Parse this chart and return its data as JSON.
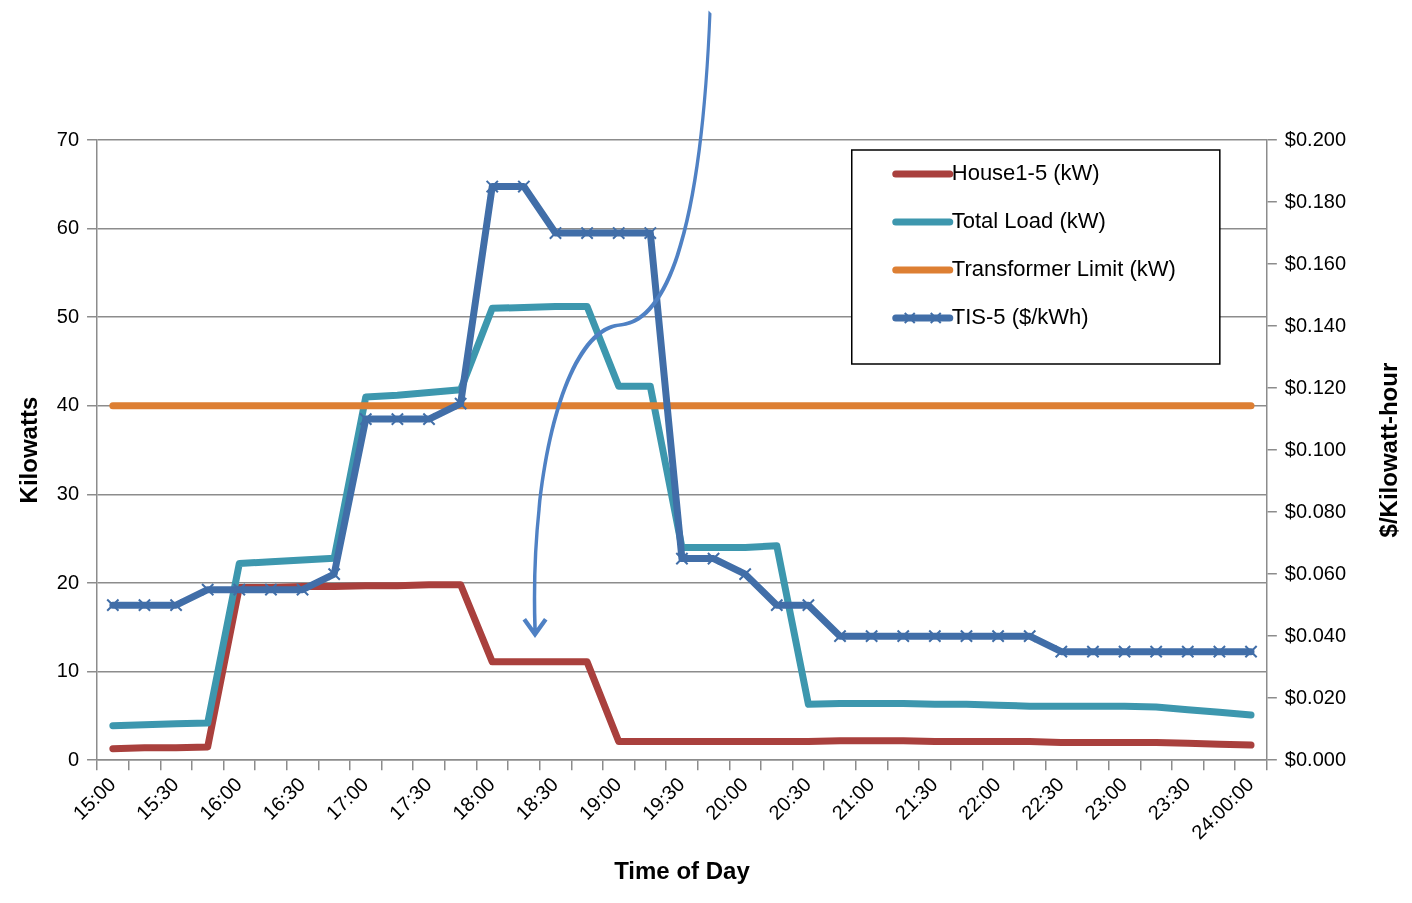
{
  "chart_data": {
    "type": "line",
    "xlabel": "Time of Day",
    "ylabel": "Kilowatts",
    "y2label": "$/Kilowatt-hour",
    "categories": [
      "15:00",
      null,
      "15:30",
      null,
      "16:00",
      null,
      "16:30",
      null,
      "17:00",
      null,
      "17:30",
      null,
      "18:00",
      null,
      "18:30",
      null,
      "19:00",
      null,
      "19:30",
      null,
      "20:00",
      null,
      "20:30",
      null,
      "21:00",
      null,
      "21:30",
      null,
      "22:00",
      null,
      "22:30",
      null,
      "23:00",
      null,
      "23:30",
      null,
      "24:00:00"
    ],
    "series": [
      {
        "name": "House1-5 (kW)",
        "color": "#a9403d",
        "values": [
          1.3,
          1.4,
          1.4,
          1.5,
          19.5,
          19.5,
          19.6,
          19.6,
          19.7,
          19.7,
          19.8,
          19.8,
          11.1,
          11.1,
          11.1,
          11.1,
          2.1,
          2.1,
          2.1,
          2.1,
          2.1,
          2.1,
          2.1,
          2.2,
          2.2,
          2.2,
          2.1,
          2.1,
          2.1,
          2.1,
          2.0,
          2.0,
          2.0,
          2.0,
          1.9,
          1.8,
          1.7
        ]
      },
      {
        "name": "Total Load (kW)",
        "color": "#3d97ae",
        "values": [
          3.9,
          4.0,
          4.1,
          4.2,
          22.2,
          22.4,
          22.6,
          22.8,
          41.0,
          41.2,
          41.5,
          41.8,
          51.0,
          51.1,
          51.2,
          51.2,
          42.2,
          42.2,
          24.0,
          24.0,
          24.0,
          24.2,
          6.3,
          6.4,
          6.4,
          6.4,
          6.3,
          6.3,
          6.2,
          6.1,
          6.1,
          6.1,
          6.1,
          6.0,
          5.7,
          5.4,
          5.1
        ]
      },
      {
        "name": "Transformer Limit (kW)",
        "color": "#dd7f33",
        "values": [
          40,
          40,
          40,
          40,
          40,
          40,
          40,
          40,
          40,
          40,
          40,
          40,
          40,
          40,
          40,
          40,
          40,
          40,
          40,
          40,
          40,
          40,
          40,
          40,
          40,
          40,
          40,
          40,
          40,
          40,
          40,
          40,
          40,
          40,
          40,
          40,
          40
        ]
      },
      {
        "name": "TIS-5 ($/kWh)",
        "color": "#416ea8",
        "axis": "y2",
        "marker": "cross",
        "values": [
          0.05,
          0.05,
          0.05,
          0.055,
          0.055,
          0.055,
          0.055,
          0.06,
          0.11,
          0.11,
          0.11,
          0.115,
          0.185,
          0.185,
          0.17,
          0.17,
          0.17,
          0.17,
          0.065,
          0.065,
          0.06,
          0.05,
          0.05,
          0.04,
          0.04,
          0.04,
          0.04,
          0.04,
          0.04,
          0.04,
          0.035,
          0.035,
          0.035,
          0.035,
          0.035,
          0.035,
          0.035
        ]
      }
    ],
    "ylim": [
      0,
      70
    ],
    "yticks": [
      0,
      10,
      20,
      30,
      40,
      50,
      60,
      70
    ],
    "y2lim": [
      0,
      0.2
    ],
    "y2ticks": [
      {
        "value": 0,
        "label": "$0.000"
      },
      {
        "value": 0.02,
        "label": "$0.020"
      },
      {
        "value": 0.04,
        "label": "$0.040"
      },
      {
        "value": 0.06,
        "label": "$0.060"
      },
      {
        "value": 0.08,
        "label": "$0.080"
      },
      {
        "value": 0.1,
        "label": "$0.100"
      },
      {
        "value": 0.12,
        "label": "$0.120"
      },
      {
        "value": 0.14,
        "label": "$0.140"
      },
      {
        "value": 0.16,
        "label": "$0.160"
      },
      {
        "value": 0.18,
        "label": "$0.180"
      },
      {
        "value": 0.2,
        "label": "$0.200"
      }
    ],
    "grid": "y",
    "legend": "top right"
  }
}
